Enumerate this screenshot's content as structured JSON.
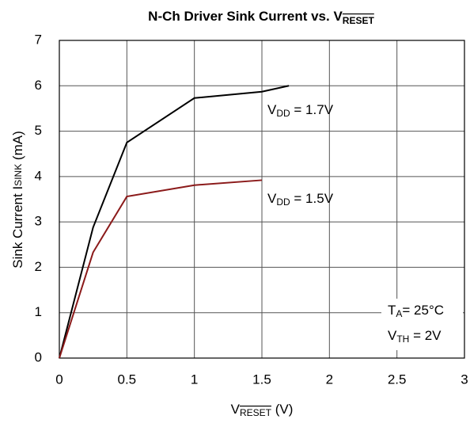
{
  "chart_data": {
    "type": "line",
    "title": [
      "N-Ch Driver Sink Current vs. V",
      "RESET"
    ],
    "xlabel": [
      "V",
      "RESET",
      " (V)"
    ],
    "ylabel": [
      "Sink Current I",
      "SINK",
      " (mA)"
    ],
    "series": [
      {
        "name": "VDD = 1.7V",
        "color": "#000000",
        "x": [
          0,
          0.25,
          0.5,
          1,
          1.5,
          1.7
        ],
        "values": [
          0,
          2.88,
          4.75,
          5.73,
          5.87,
          6.0
        ]
      },
      {
        "name": "VDD = 1.5V",
        "color": "#8b1a1a",
        "x": [
          0,
          0.25,
          0.5,
          1,
          1.5
        ],
        "values": [
          0,
          2.33,
          3.56,
          3.81,
          3.92
        ]
      }
    ],
    "annotations": [
      [
        "T",
        "A",
        "= 25°C"
      ],
      [
        "V",
        "TH",
        " = 2V"
      ]
    ],
    "xlim": [
      0,
      3
    ],
    "xticks": [
      0,
      0.5,
      1,
      1.5,
      2,
      2.5,
      3
    ],
    "ylim": [
      0,
      7
    ],
    "yticks": [
      0,
      1,
      2,
      3,
      4,
      5,
      6,
      7
    ],
    "grid": true
  }
}
